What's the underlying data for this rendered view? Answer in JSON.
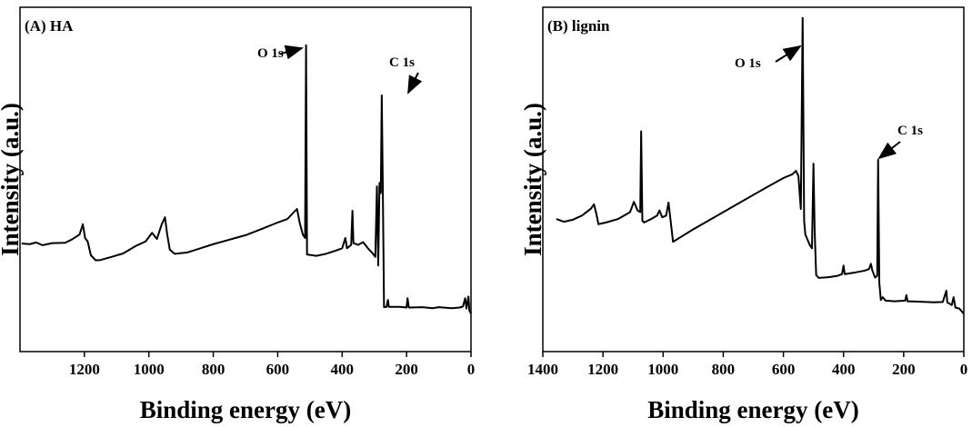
{
  "chart_data": [
    {
      "type": "line",
      "title": "(A) HA",
      "x_label": "Binding energy (eV)",
      "y_label": "Intensity (a.u.)",
      "xlim": [
        1400,
        0
      ],
      "xticks": [
        1200,
        1000,
        800,
        600,
        400,
        200,
        0
      ],
      "ylim": [
        0,
        100
      ],
      "yticks": [],
      "annotations": [
        "O 1s",
        "C 1s"
      ],
      "x": [
        1395,
        1370,
        1350,
        1330,
        1300,
        1260,
        1240,
        1215,
        1205,
        1198,
        1190,
        1180,
        1165,
        1150,
        1120,
        1080,
        1040,
        1010,
        990,
        975,
        960,
        950,
        943,
        935,
        920,
        880,
        840,
        800,
        750,
        700,
        650,
        600,
        570,
        550,
        540,
        532,
        522,
        515,
        512,
        509,
        480,
        450,
        420,
        400,
        390,
        385,
        372,
        368,
        365,
        350,
        335,
        320,
        305,
        297,
        292,
        288,
        284,
        280,
        277,
        274,
        270,
        262,
        258,
        255,
        220,
        200,
        197,
        193,
        150,
        120,
        100,
        60,
        35,
        25,
        18,
        14,
        8,
        5,
        0
      ],
      "series": [
        {
          "name": "HA",
          "color": "#000000",
          "values": [
            31.4,
            31.2,
            31.7,
            30.9,
            31.5,
            31.6,
            32.5,
            34,
            37,
            33,
            32,
            28,
            26.5,
            26.6,
            27.4,
            28.5,
            30.7,
            32,
            34.5,
            32.7,
            37,
            39,
            34,
            29.6,
            28.4,
            28.8,
            30,
            31.2,
            32.5,
            33.8,
            35.6,
            37.5,
            38.5,
            40.5,
            41.4,
            37.5,
            34,
            33,
            89,
            28.2,
            27.8,
            28.4,
            29.3,
            30,
            33,
            30,
            31,
            40.9,
            31.5,
            31,
            31.8,
            30,
            28.5,
            27.5,
            48,
            25,
            49,
            46,
            74.4,
            50,
            12.9,
            13,
            15,
            13,
            13,
            12.8,
            15.5,
            12.8,
            12.9,
            12.6,
            12.9,
            12.6,
            12.8,
            13.1,
            15.5,
            12.5,
            16,
            12,
            11
          ]
        }
      ]
    },
    {
      "type": "line",
      "title": "(B) lignin",
      "x_label": "Binding energy (eV)",
      "y_label": "Intensity (a.u.)",
      "xlim": [
        1400,
        0
      ],
      "xticks": [
        1400,
        1200,
        1000,
        800,
        600,
        400,
        200,
        0
      ],
      "ylim": [
        0,
        100
      ],
      "yticks": [],
      "annotations": [
        "O 1s",
        "C 1s"
      ],
      "x": [
        1355,
        1330,
        1300,
        1270,
        1240,
        1230,
        1222,
        1215,
        1190,
        1150,
        1110,
        1097,
        1085,
        1076,
        1073,
        1069,
        1063,
        1040,
        1020,
        1012,
        1003,
        990,
        982,
        975,
        967,
        950,
        900,
        850,
        800,
        750,
        700,
        650,
        600,
        570,
        558,
        550,
        545,
        542,
        536,
        531,
        527,
        512,
        505,
        500,
        496,
        491,
        482,
        450,
        420,
        405,
        400,
        396,
        360,
        330,
        315,
        309,
        304,
        295,
        288,
        285,
        281,
        276,
        270,
        260,
        230,
        195,
        191,
        187,
        150,
        100,
        70,
        58,
        55,
        40,
        34,
        28,
        15,
        5,
        0
      ],
      "series": [
        {
          "name": "lignin",
          "color": "#000000",
          "values": [
            38.5,
            37.7,
            38.3,
            39.5,
            41.5,
            42.8,
            40,
            37,
            37.5,
            38.5,
            40.5,
            43.5,
            41,
            40.5,
            64,
            38,
            37.5,
            38.5,
            39.5,
            41,
            39,
            39.5,
            43.3,
            38,
            31.9,
            32.8,
            35.5,
            38,
            40.5,
            43,
            45.5,
            48,
            50.4,
            51.5,
            52.5,
            51,
            45,
            41.4,
            96.9,
            38,
            34,
            30.9,
            30,
            54.6,
            35,
            22.2,
            21.4,
            21.6,
            22,
            22.5,
            25,
            22.5,
            23,
            23.5,
            24,
            25.5,
            23.5,
            21.5,
            22,
            55.7,
            20,
            15,
            15.8,
            14.8,
            14.6,
            14.8,
            16.4,
            14.6,
            14.5,
            14.3,
            14.4,
            17.7,
            14.3,
            13.5,
            15.8,
            12.8,
            12.5,
            11.5,
            11
          ]
        }
      ]
    }
  ]
}
